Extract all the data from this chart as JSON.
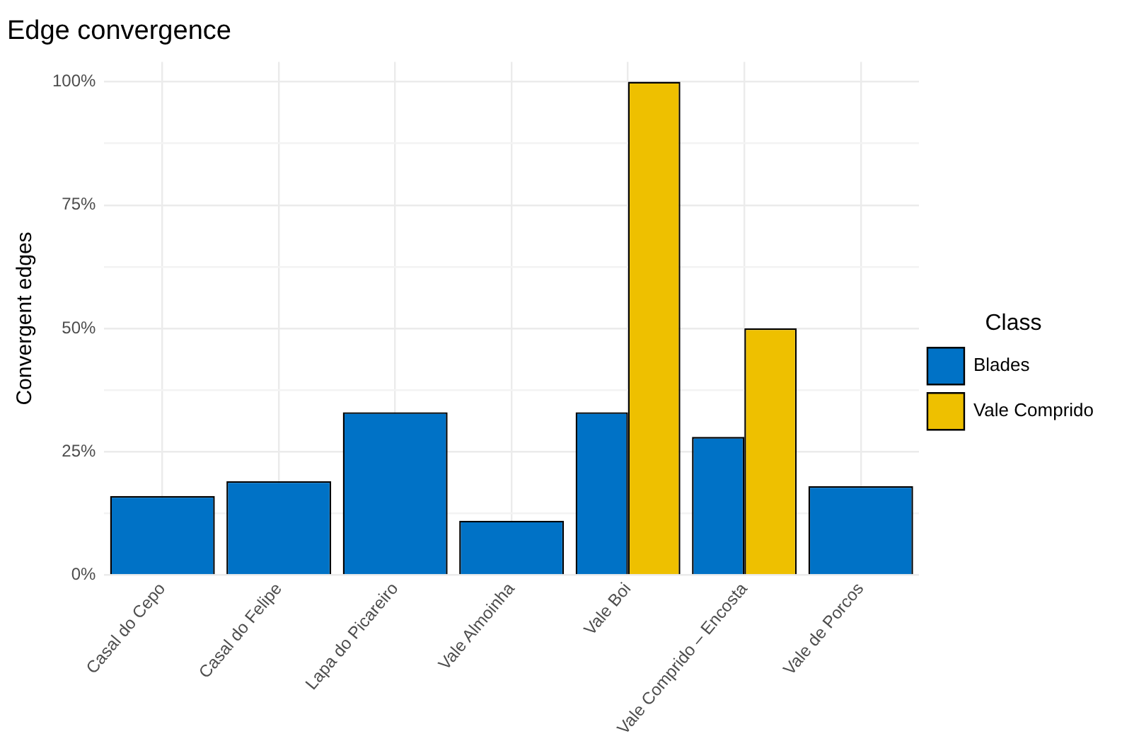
{
  "chart_data": {
    "type": "bar",
    "title": "Edge convergence",
    "ylabel": "Convergent edges",
    "legend_title": "Class",
    "categories": [
      "Casal do Cepo",
      "Casal do Felipe",
      "Lapa do Picareiro",
      "Vale Almoinha",
      "Vale Boi",
      "Vale Comprido – Encosta",
      "Vale de Porcos"
    ],
    "series": [
      {
        "name": "Blades",
        "color": "#0072c6",
        "values": [
          16,
          19,
          33,
          11,
          33,
          28,
          18
        ]
      },
      {
        "name": "Vale Comprido",
        "color": "#eec000",
        "values": [
          null,
          null,
          null,
          null,
          100,
          50,
          null
        ]
      }
    ],
    "ylim": [
      0,
      104
    ],
    "yticks": [
      {
        "value": 0,
        "label": "0%"
      },
      {
        "value": 12.5,
        "label": null
      },
      {
        "value": 25,
        "label": "25%"
      },
      {
        "value": 37.5,
        "label": null
      },
      {
        "value": 50,
        "label": "50%"
      },
      {
        "value": 62.5,
        "label": null
      },
      {
        "value": 75,
        "label": "75%"
      },
      {
        "value": 87.5,
        "label": null
      },
      {
        "value": 100,
        "label": "100%"
      }
    ],
    "grid": true,
    "legend": "right"
  }
}
